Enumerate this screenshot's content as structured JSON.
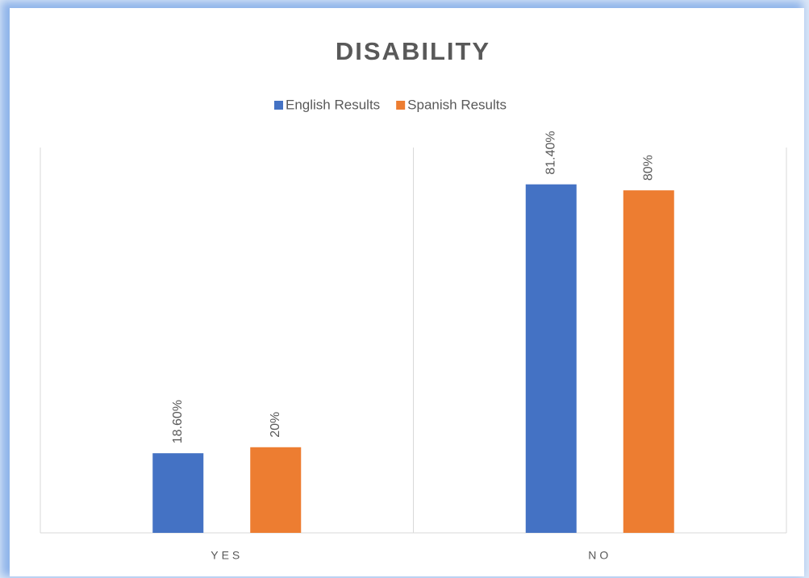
{
  "chart_data": {
    "type": "bar",
    "title": "DISABILITY",
    "categories": [
      "YES",
      "NO"
    ],
    "series": [
      {
        "name": "English Results",
        "color": "#4472c4",
        "values": [
          18.6,
          81.4
        ],
        "value_labels": [
          "18.60%",
          "81.40%"
        ]
      },
      {
        "name": "Spanish Results",
        "color": "#ed7d31",
        "values": [
          20,
          80
        ],
        "value_labels": [
          "20%",
          "80%"
        ]
      }
    ],
    "ylim": [
      0,
      90
    ],
    "legend": "top"
  }
}
